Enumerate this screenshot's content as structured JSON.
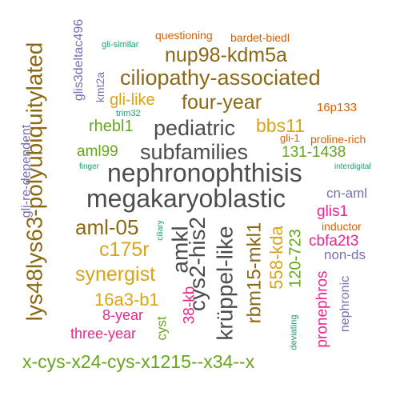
{
  "colors": {
    "dark_gray": "#4d4d4d",
    "brown": "#8b6914",
    "gold": "#d9a417",
    "green": "#66a61e",
    "teal": "#1b9e77",
    "orange": "#d95f02",
    "purple": "#7570b3",
    "magenta": "#e7298a"
  },
  "words": [
    "nephronophthisis",
    "megakaryoblastic",
    "subfamilies",
    "pediatric",
    "lys48lys63-polyubiquitylated",
    "ciliopathy-associated",
    "nup98-kdm5a",
    "four-year",
    "krüppel-like",
    "cys2-his2",
    "amkl",
    "aml-05",
    "rbm15-mkl1",
    "x-cys-x24-cys-x1215--x34--x",
    "synergist",
    "c175r",
    "16a3-b1",
    "bbs11",
    "gli-like",
    "rhebl1",
    "aml99",
    "131-1438",
    "558-kda",
    "120-723",
    "glis1",
    "cbfa2t3",
    "pronephros",
    "38-kb",
    "8-year",
    "three-year",
    "cyst",
    "gli-re-dependent",
    "glis3deltac496",
    "kmt2a",
    "cn-aml",
    "non-ds",
    "nephronic",
    "questioning",
    "bardet-biedl",
    "16p133",
    "gli-1",
    "proline-rich",
    "inductor",
    "gli-similar",
    "trim32",
    "finger",
    "interdigital",
    "ciliary",
    "deviating"
  ]
}
